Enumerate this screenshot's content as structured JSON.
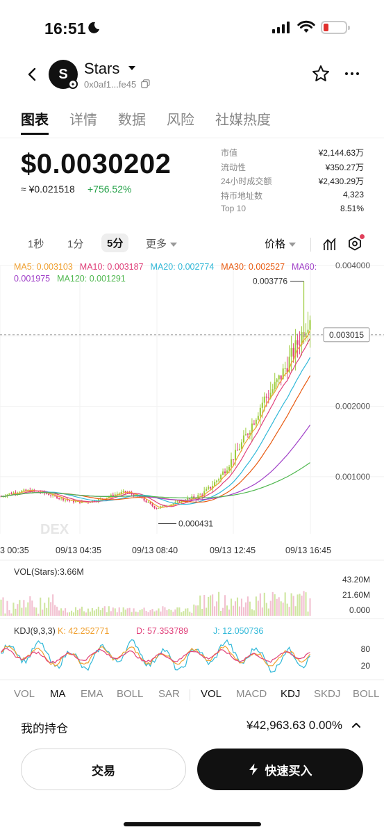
{
  "status_bar": {
    "time": "16:51"
  },
  "header": {
    "avatar_letter": "S",
    "token_name": "Stars",
    "address": "0x0af1...fe45"
  },
  "tabs": [
    {
      "label": "图表"
    },
    {
      "label": "详情"
    },
    {
      "label": "数据"
    },
    {
      "label": "风险"
    },
    {
      "label": "社媒热度"
    }
  ],
  "price": {
    "usd": "$0.0030202",
    "cny": "≈ ¥0.021518",
    "change": "+756.52%"
  },
  "stats": [
    {
      "label": "市值",
      "value": "¥2,144.63万"
    },
    {
      "label": "流动性",
      "value": "¥350.27万"
    },
    {
      "label": "24小时成交额",
      "value": "¥2,430.29万"
    },
    {
      "label": "持币地址数",
      "value": "4,323"
    },
    {
      "label": "Top 10",
      "value": "8.51%"
    }
  ],
  "timeframes": [
    {
      "label": "1秒"
    },
    {
      "label": "1分"
    },
    {
      "label": "5分",
      "active": true
    },
    {
      "label": "更多"
    }
  ],
  "price_toggle": "价格",
  "ma_legend": {
    "ma5": "MA5: 0.003103",
    "ma10": "MA10: 0.003187",
    "ma20": "MA20: 0.002774",
    "ma30": "MA30: 0.002527",
    "ma60": "MA60: 0.001975",
    "ma120": "MA120: 0.001291"
  },
  "colors": {
    "up": "#9ccc3c",
    "down": "#e0407a",
    "ma5": "#f0a030",
    "ma10": "#e0407a",
    "ma20": "#30b8d8",
    "ma30": "#e85a10",
    "ma60": "#a040c8",
    "ma120": "#50b850",
    "positive": "#24a148"
  },
  "chart_data": {
    "type": "candlestick",
    "y_ticks": [
      "0.004000",
      "0.003000",
      "0.002000",
      "0.001000"
    ],
    "y_values": [
      0.004,
      0.003,
      0.002,
      0.001
    ],
    "x_ticks": [
      "3 00:35",
      "09/13 04:35",
      "09/13 08:40",
      "09/13 12:45",
      "09/13 16:45"
    ],
    "current_price_label": "0.003015",
    "current_price": 0.003015,
    "high_label": "0.003776",
    "high": 0.003776,
    "low_label": "0.000431",
    "low": 0.000431,
    "watermark": "DEX",
    "volume": {
      "label": "VOL(Stars):3.66M",
      "ticks": [
        "43.20M",
        "21.60M",
        "0.000"
      ]
    },
    "kdj": {
      "label": "KDJ(9,3,3)",
      "k": "K: 42.252771",
      "d": "D: 57.353789",
      "j": "J: 12.050736",
      "ticks": [
        "80",
        "20"
      ]
    }
  },
  "indicators": {
    "main": [
      "VOL",
      "MA",
      "EMA",
      "BOLL",
      "SAR"
    ],
    "sub": [
      "VOL",
      "MACD",
      "KDJ",
      "SKDJ",
      "BOLL"
    ]
  },
  "holdings": {
    "label": "我的持仓",
    "value": "¥42,963.63 0.00%"
  },
  "buttons": {
    "trade": "交易",
    "quick_buy": "快速买入"
  }
}
